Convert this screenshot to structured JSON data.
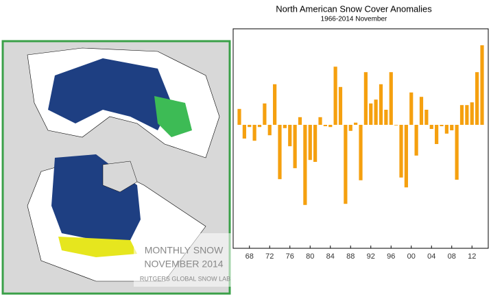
{
  "chart_data": {
    "type": "bar",
    "title": "North American Snow Cover Anomalies",
    "subtitle": "1966-2014 November",
    "categories": [
      null,
      null,
      "68",
      null,
      null,
      null,
      "72",
      null,
      null,
      null,
      "76",
      null,
      null,
      null,
      "80",
      null,
      null,
      null,
      "84",
      null,
      null,
      null,
      "88",
      null,
      null,
      null,
      "92",
      null,
      null,
      null,
      "96",
      null,
      null,
      null,
      "00",
      null,
      null,
      null,
      "04",
      null,
      null,
      null,
      "08",
      null,
      null,
      null,
      "12",
      null,
      null
    ],
    "values": [
      0.58,
      -0.5,
      -0.08,
      -0.58,
      -0.08,
      0.78,
      -0.38,
      1.48,
      -1.98,
      -0.12,
      -0.78,
      -1.58,
      0.28,
      -2.92,
      -1.28,
      -1.35,
      0.28,
      -0.05,
      -0.08,
      2.12,
      1.38,
      -2.88,
      -0.22,
      0.08,
      -2.02,
      1.92,
      0.78,
      0.92,
      1.48,
      0.55,
      1.92,
      -0.02,
      -1.92,
      -2.28,
      1.18,
      -1.12,
      1.02,
      0.55,
      -0.15,
      -0.7,
      -0.05,
      -0.32,
      -0.2,
      -2.0,
      0.72,
      0.72,
      0.82,
      1.92,
      2.9
    ],
    "color": "#f5a00f",
    "ylim": [
      -4.5,
      3.5
    ]
  },
  "map_labels": {
    "line1": "MONTHLY SNOW",
    "line2": "NOVEMBER 2014",
    "credit": "RUTGERS GLOBAL SNOW LAB"
  }
}
